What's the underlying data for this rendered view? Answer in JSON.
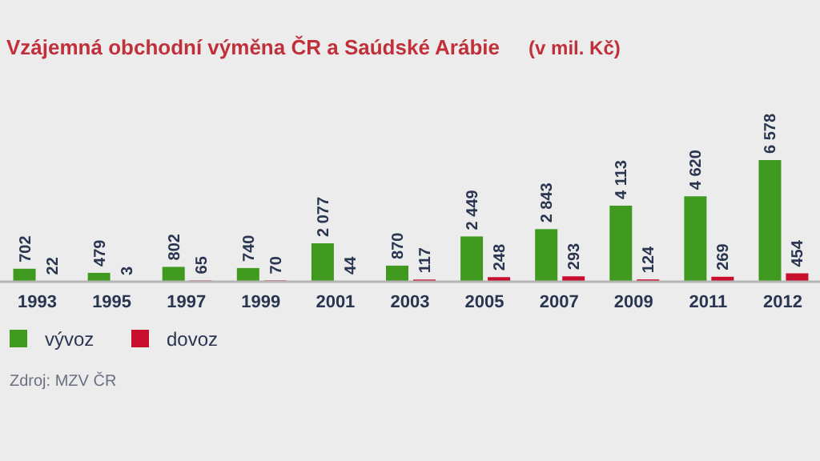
{
  "chart_data": {
    "type": "bar",
    "title": "Vzájemná obchodní výměna ČR a Saúdské Arábie",
    "subtitle": "(v mil. Kč)",
    "categories": [
      "1993",
      "1995",
      "1997",
      "1999",
      "2001",
      "2003",
      "2005",
      "2007",
      "2009",
      "2011",
      "2012"
    ],
    "series": [
      {
        "name": "vývoz",
        "color": "#3f9a1f",
        "values": [
          702,
          479,
          802,
          740,
          2077,
          870,
          2449,
          2843,
          4113,
          4620,
          6578
        ],
        "value_labels": [
          "702",
          "479",
          "802",
          "740",
          "2 077",
          "870",
          "2 449",
          "2 843",
          "4 113",
          "4 620",
          "6 578"
        ]
      },
      {
        "name": "dovoz",
        "color": "#c8102e",
        "values": [
          22,
          3,
          65,
          70,
          44,
          117,
          248,
          293,
          124,
          269,
          454
        ],
        "value_labels": [
          "22",
          "3",
          "65",
          "70",
          "44",
          "117",
          "248",
          "293",
          "124",
          "269",
          "454"
        ]
      }
    ],
    "legend": "bottom left",
    "grid": false,
    "annotations": [
      "Zdroj: MZV ČR"
    ]
  }
}
